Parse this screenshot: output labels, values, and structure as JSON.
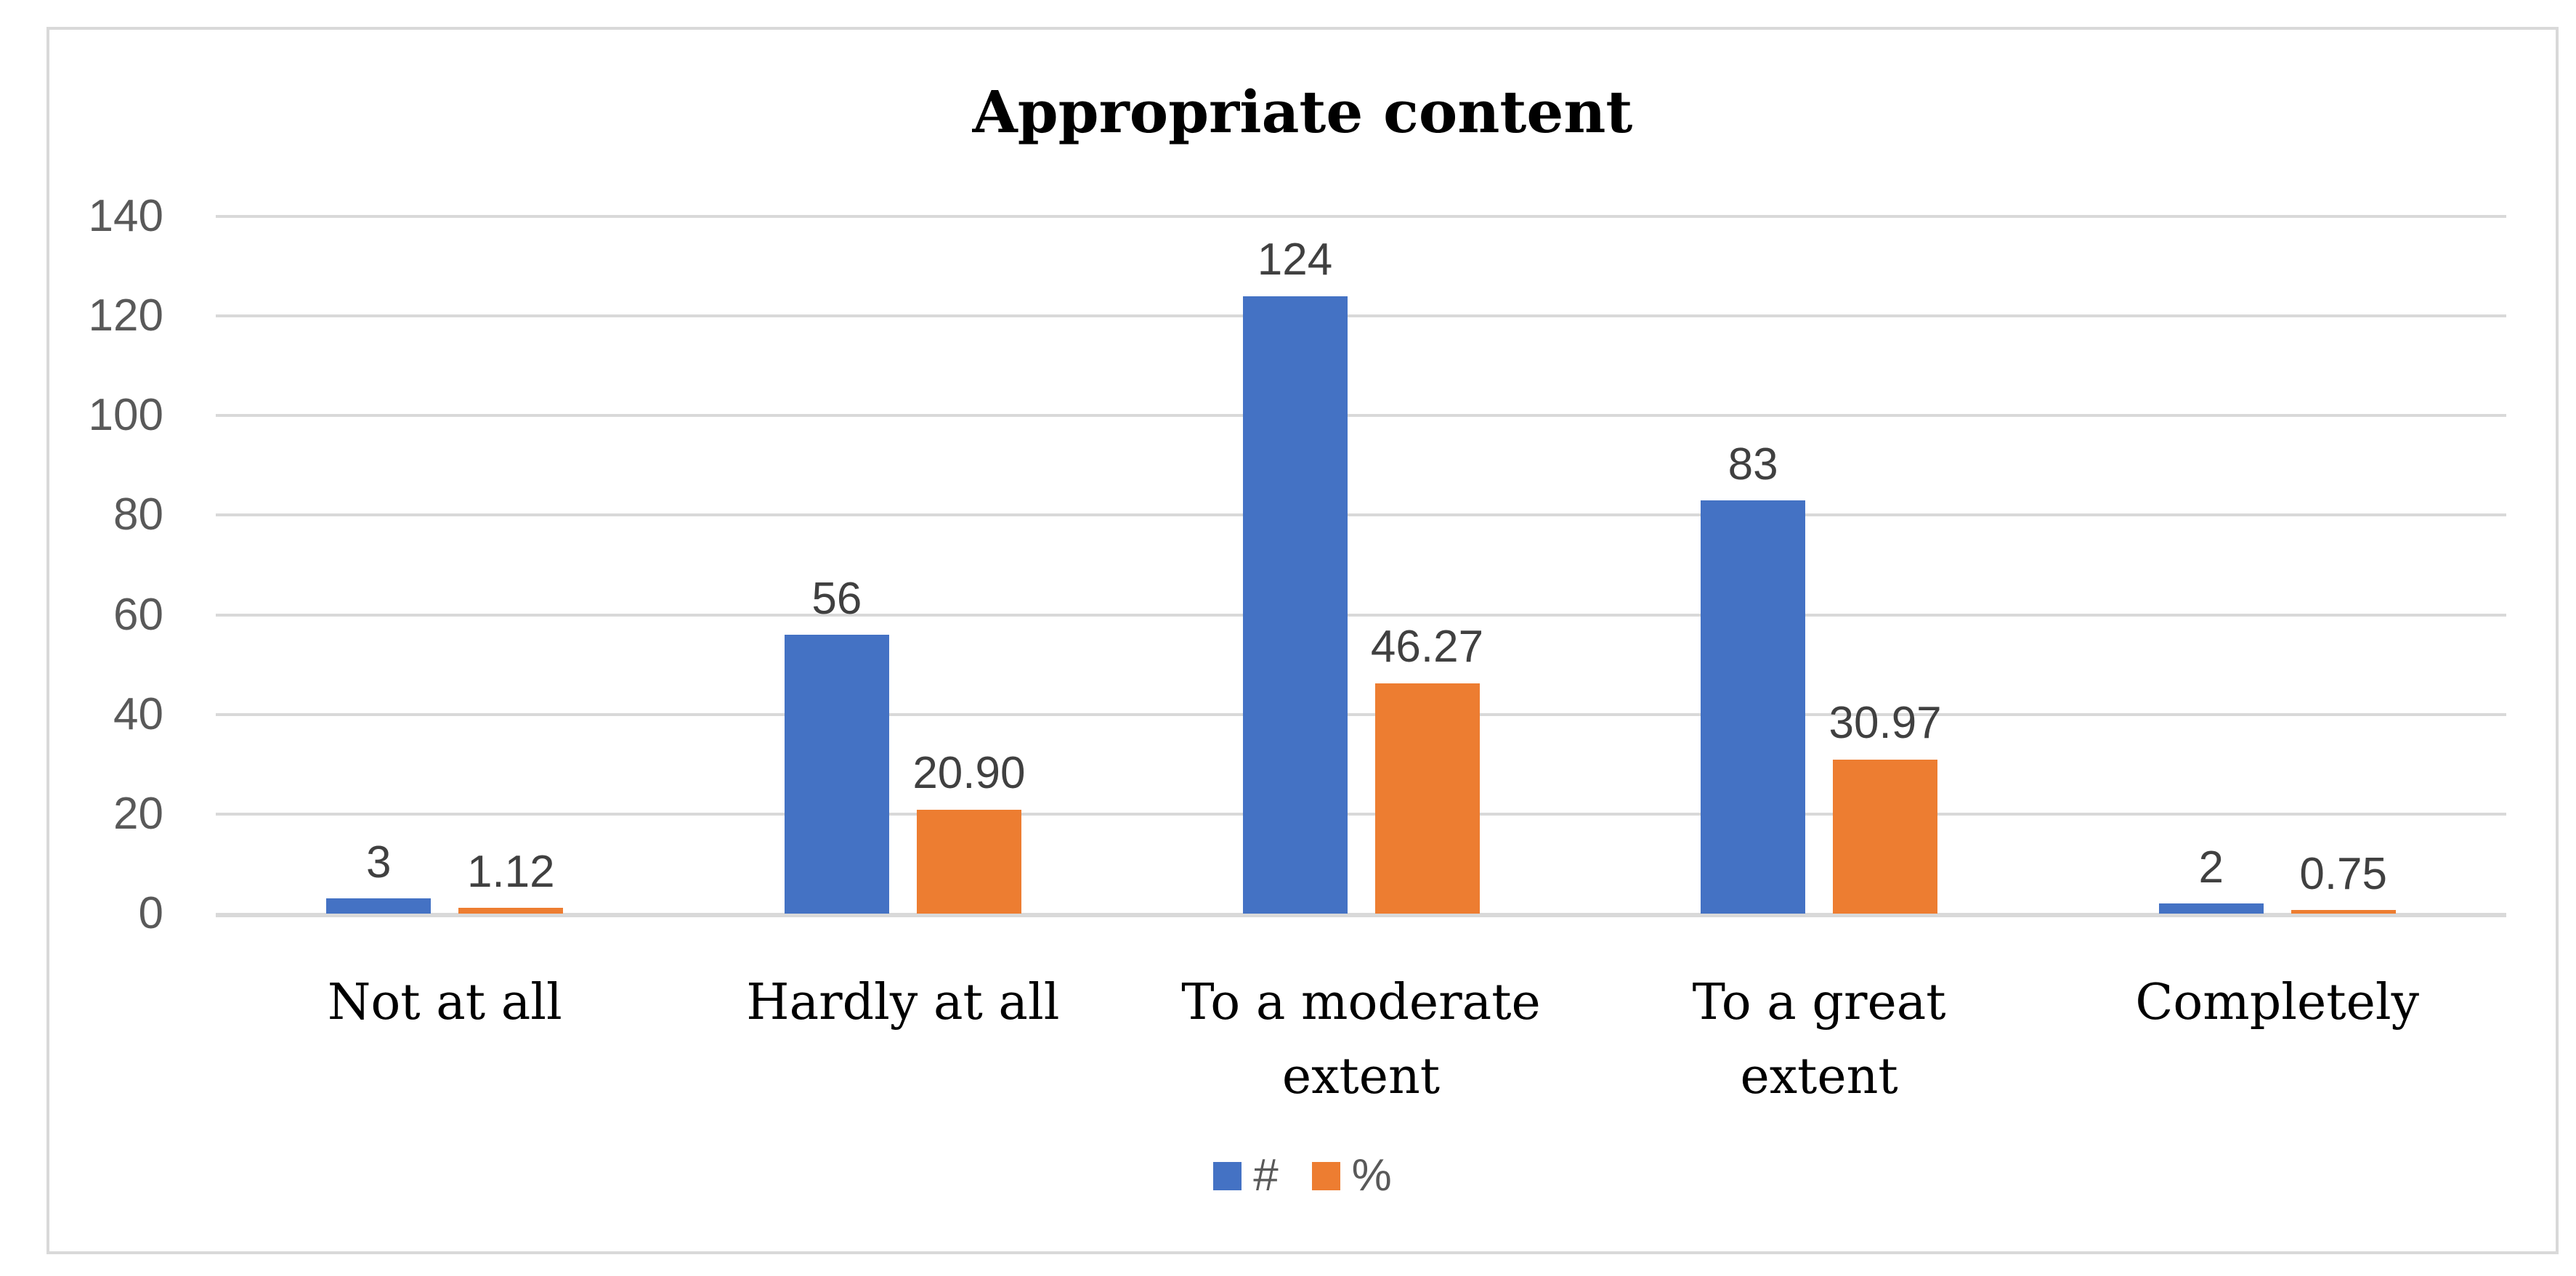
{
  "chart_data": {
    "type": "bar",
    "title": "Appropriate content",
    "categories": [
      "Not at all",
      "Hardly at all",
      "To a moderate extent",
      "To a great extent",
      "Completely"
    ],
    "series": [
      {
        "name": "#",
        "color": "#4472C4",
        "values": [
          3,
          56,
          124,
          83,
          2
        ],
        "labels": [
          "3",
          "56",
          "124",
          "83",
          "2"
        ]
      },
      {
        "name": "%",
        "color": "#ED7D31",
        "values": [
          1.12,
          20.9,
          46.27,
          30.97,
          0.75
        ],
        "labels": [
          "1.12",
          "20.90",
          "46.27",
          "30.97",
          "0.75"
        ]
      }
    ],
    "ylim": [
      0,
      140
    ],
    "yticks": [
      0,
      20,
      40,
      60,
      80,
      100,
      120,
      140
    ],
    "grid": "horizontal-gridlines-on",
    "legend_position": "bottom-center",
    "colors": {
      "series_blue": "#4472C4",
      "series_orange": "#ED7D31",
      "gridline": "#D9D9D9",
      "frame_border": "#D9D9D9",
      "tick_label": "#595959",
      "value_label": "#404040",
      "category_label": "#000000",
      "title": "#000000",
      "background": "#FFFFFF"
    }
  }
}
